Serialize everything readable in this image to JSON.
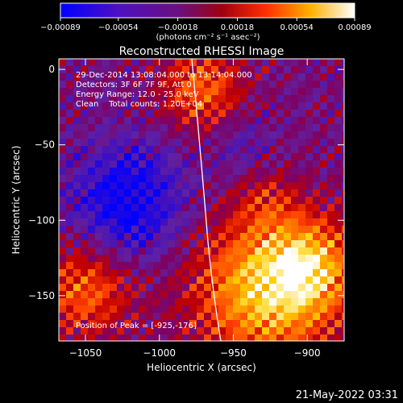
{
  "chart_data": {
    "type": "heatmap",
    "title": "Reconstructed RHESSI Image",
    "xlabel": "Heliocentric X (arcsec)",
    "ylabel": "Heliocentric Y (arcsec)",
    "xlim": [
      -1068,
      -875
    ],
    "ylim": [
      -180,
      7
    ],
    "x_ticks": [
      -1050,
      -1000,
      -950,
      -900
    ],
    "y_ticks": [
      0,
      -50,
      -100,
      -150
    ],
    "x_tick_labels": [
      "−1050",
      "−1000",
      "−950",
      "−900"
    ],
    "y_tick_labels": [
      "0",
      "−50",
      "−100",
      "−150"
    ],
    "colorbar": {
      "min": -0.00089,
      "max": 0.00089,
      "ticks": [
        -0.00089,
        -0.00054,
        -0.00018,
        0.00018,
        0.00054,
        0.00089
      ],
      "tick_labels": [
        "−0.00089",
        "−0.00054",
        "−0.00018",
        "0.00018",
        "0.00054",
        "0.00089"
      ],
      "unit_label": "(photons cm⁻² s⁻¹ asec⁻²)"
    },
    "annotations": [
      "29-Dec-2014 13:08:04.000 to 13:14:04.000",
      "Detectors: 3F 6F 7F 9F, Att 0",
      "Energy Range: 12.0 - 25.0 keV",
      "Clean    Total counts: 1.20E+04"
    ],
    "peak_label": "Position of Peak = [-925,-176]",
    "peak": [
      -925,
      -176
    ],
    "solar_limb_color": "#ffffff",
    "colormap": [
      "#0000ff",
      "#4010c0",
      "#6020a0",
      "#800060",
      "#c00000",
      "#ff4000",
      "#ff8000",
      "#ffd000",
      "#ffffff"
    ]
  },
  "footer_timestamp": "21-May-2022 03:31"
}
